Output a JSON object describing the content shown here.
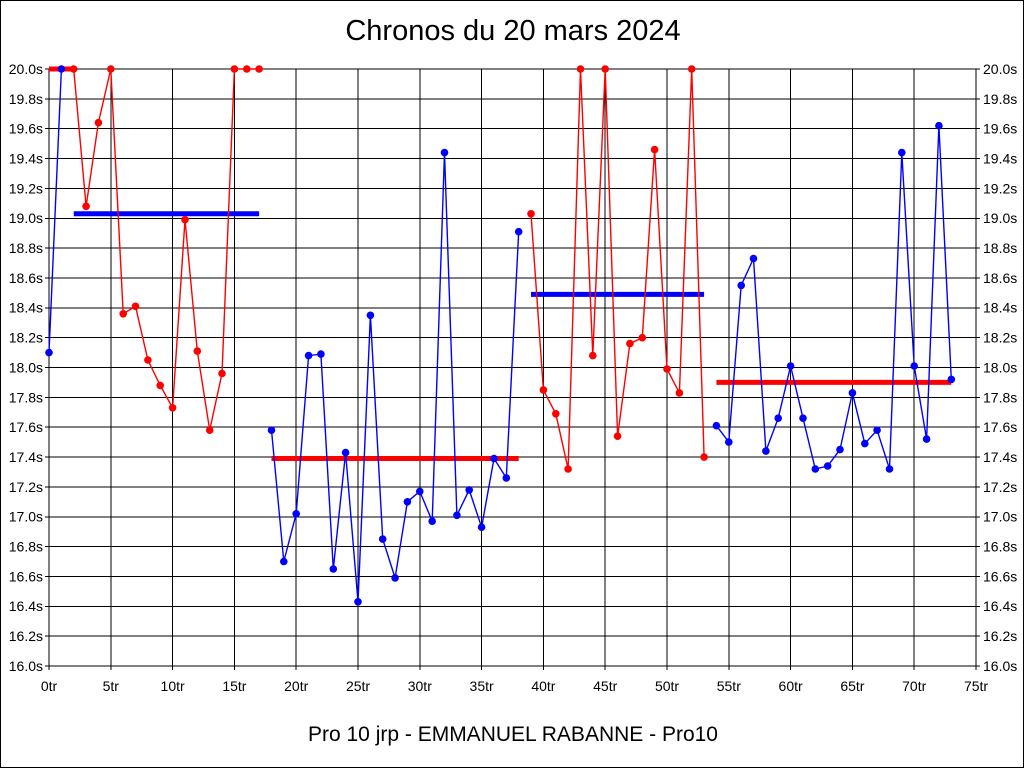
{
  "window": {
    "background": "#ffffff",
    "border_color": "#000000"
  },
  "chart_data": {
    "type": "line",
    "title": "Chronos du 20 mars 2024",
    "footer": "Pro 10 jrp - EMMANUEL RABANNE - Pro10",
    "x_unit": "tr",
    "y_unit": "s",
    "xlim": [
      0,
      75
    ],
    "ylim": [
      16.0,
      20.0
    ],
    "grid": true,
    "x_tick_values": [
      0,
      5,
      10,
      15,
      20,
      25,
      30,
      35,
      40,
      45,
      50,
      55,
      60,
      65,
      70,
      75
    ],
    "x_tick_labels": [
      "0tr",
      "5tr",
      "10tr",
      "15tr",
      "20tr",
      "25tr",
      "30tr",
      "35tr",
      "40tr",
      "45tr",
      "50tr",
      "55tr",
      "60tr",
      "65tr",
      "70tr",
      "75tr"
    ],
    "y_tick_values": [
      20.0,
      19.8,
      19.6,
      19.4,
      19.2,
      19.0,
      18.8,
      18.6,
      18.4,
      18.2,
      18.0,
      17.8,
      17.6,
      17.4,
      17.2,
      17.0,
      16.8,
      16.6,
      16.4,
      16.2,
      16.0
    ],
    "y_tick_labels": [
      "20.0s",
      "19.8s",
      "19.6s",
      "19.4s",
      "19.2s",
      "19.0s",
      "18.8s",
      "18.6s",
      "18.4s",
      "18.2s",
      "18.0s",
      "17.8s",
      "17.6s",
      "17.4s",
      "17.2s",
      "17.0s",
      "16.8s",
      "16.6s",
      "16.4s",
      "16.2s",
      "16.0s"
    ],
    "colors": {
      "blue": "#0000ff",
      "red": "#ff0000",
      "axis": "#000000",
      "text": "#000000"
    },
    "segments": [
      {
        "name": "stint-1-laps",
        "color": "blue",
        "laps": [
          [
            0,
            18.1
          ],
          [
            1,
            20.0
          ]
        ]
      },
      {
        "name": "stint-2-laps",
        "color": "red",
        "laps": [
          [
            2,
            20.0
          ],
          [
            3,
            19.08
          ],
          [
            4,
            19.64
          ],
          [
            5,
            20.0
          ],
          [
            6,
            18.36
          ],
          [
            7,
            18.41
          ],
          [
            8,
            18.05
          ],
          [
            9,
            17.88
          ],
          [
            10,
            17.73
          ],
          [
            11,
            18.99
          ],
          [
            12,
            18.11
          ],
          [
            13,
            17.58
          ],
          [
            14,
            17.96
          ],
          [
            15,
            20.0
          ],
          [
            16,
            20.0
          ],
          [
            17,
            20.0
          ]
        ]
      },
      {
        "name": "stint-3-laps",
        "color": "blue",
        "laps": [
          [
            18,
            17.58
          ],
          [
            19,
            16.7
          ],
          [
            20,
            17.02
          ],
          [
            21,
            18.08
          ],
          [
            22,
            18.09
          ],
          [
            23,
            16.65
          ],
          [
            24,
            17.43
          ],
          [
            25,
            16.43
          ],
          [
            26,
            18.35
          ],
          [
            27,
            16.85
          ],
          [
            28,
            16.59
          ],
          [
            29,
            17.1
          ],
          [
            30,
            17.17
          ],
          [
            31,
            16.97
          ],
          [
            32,
            19.44
          ],
          [
            33,
            17.01
          ],
          [
            34,
            17.18
          ],
          [
            35,
            16.93
          ],
          [
            36,
            17.39
          ],
          [
            37,
            17.26
          ],
          [
            38,
            18.91
          ]
        ]
      },
      {
        "name": "stint-4-laps",
        "color": "red",
        "laps": [
          [
            39,
            19.03
          ],
          [
            40,
            17.85
          ],
          [
            41,
            17.69
          ],
          [
            42,
            17.32
          ],
          [
            43,
            20.0
          ],
          [
            44,
            18.08
          ],
          [
            45,
            20.0
          ],
          [
            46,
            17.54
          ],
          [
            47,
            18.16
          ],
          [
            48,
            18.2
          ],
          [
            49,
            19.46
          ],
          [
            50,
            17.99
          ],
          [
            51,
            17.83
          ],
          [
            52,
            20.0
          ],
          [
            53,
            17.4
          ]
        ]
      },
      {
        "name": "stint-5-laps",
        "color": "blue",
        "laps": [
          [
            54,
            17.61
          ],
          [
            55,
            17.5
          ],
          [
            56,
            18.55
          ],
          [
            57,
            18.73
          ],
          [
            58,
            17.44
          ],
          [
            59,
            17.66
          ],
          [
            60,
            18.01
          ],
          [
            61,
            17.66
          ],
          [
            62,
            17.32
          ],
          [
            63,
            17.34
          ],
          [
            64,
            17.45
          ],
          [
            65,
            17.83
          ],
          [
            66,
            17.49
          ],
          [
            67,
            17.58
          ],
          [
            68,
            17.32
          ],
          [
            69,
            19.44
          ],
          [
            70,
            18.01
          ],
          [
            71,
            17.52
          ],
          [
            72,
            19.62
          ],
          [
            73,
            17.92
          ]
        ]
      }
    ],
    "average_lines": [
      {
        "name": "stint-1-average",
        "color": "red",
        "value": 20.0,
        "x_start": 0,
        "x_end": 2
      },
      {
        "name": "stint-2-average",
        "color": "blue",
        "value": 19.03,
        "x_start": 2,
        "x_end": 17
      },
      {
        "name": "stint-3-average",
        "color": "red",
        "value": 17.39,
        "x_start": 18,
        "x_end": 38
      },
      {
        "name": "stint-4-average",
        "color": "blue",
        "value": 18.49,
        "x_start": 39,
        "x_end": 53
      },
      {
        "name": "stint-5-average",
        "color": "red",
        "value": 17.9,
        "x_start": 54,
        "x_end": 73
      }
    ]
  }
}
